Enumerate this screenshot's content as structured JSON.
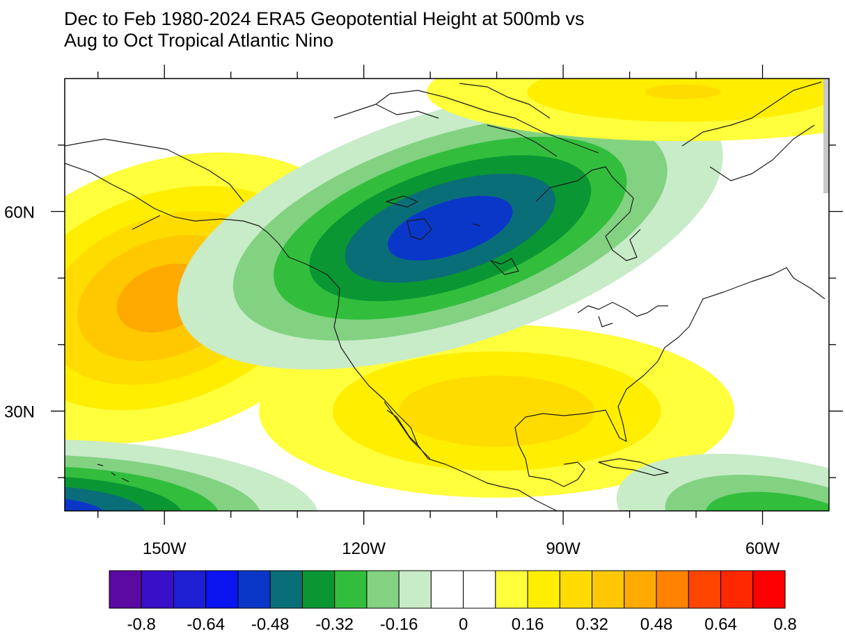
{
  "title": {
    "line1": "Dec to Feb 1980-2024 ERA5 Geopotential Height at 500mb vs",
    "line2": "Aug to Oct Tropical Atlantic Nino"
  },
  "map": {
    "lon_range": [
      -165,
      -50
    ],
    "lat_range": [
      15,
      80
    ],
    "lat_tick_labels": [
      {
        "lat": 60,
        "label": "60N"
      },
      {
        "lat": 30,
        "label": "30N"
      }
    ],
    "lon_tick_labels": [
      {
        "lon": -150,
        "label": "150W"
      },
      {
        "lon": -120,
        "label": "120W"
      },
      {
        "lon": -90,
        "label": "90W"
      },
      {
        "lon": -60,
        "label": "60W"
      }
    ],
    "minor_lon_ticks": [
      -160,
      -140,
      -130,
      -110,
      -100,
      -80,
      -70
    ],
    "minor_lat_ticks": [
      70,
      50,
      40,
      20
    ],
    "fields": [
      {
        "name": "north-pacific-ridge",
        "lon": -150,
        "lat": 47,
        "value": 0.44,
        "sx": 17,
        "sy": 11,
        "rot": -20
      },
      {
        "name": "gulf-ridge",
        "lon": -100,
        "lat": 30,
        "value": 0.3,
        "sx": 22,
        "sy": 8,
        "rot": 0
      },
      {
        "name": "canada-trough",
        "lon": -107,
        "lat": 57.5,
        "value": -0.53,
        "sx": 22,
        "sy": 9,
        "rot": -18
      },
      {
        "name": "hawaii-trough",
        "lon": -170,
        "lat": 14,
        "value": -0.55,
        "sx": 22,
        "sy": 6,
        "rot": 0
      },
      {
        "name": "arctic-ridge",
        "lon": -72,
        "lat": 78,
        "value": 0.24,
        "sx": 26,
        "sy": 5,
        "rot": 0
      },
      {
        "name": "caribbean-trough",
        "lon": -55,
        "lat": 12,
        "value": -0.35,
        "sx": 16,
        "sy": 6,
        "rot": 12
      }
    ]
  },
  "colorbar": {
    "colors": [
      "#5a0aa0",
      "#3a0fc8",
      "#1e1ed2",
      "#0a14f0",
      "#0a37c8",
      "#0a6e78",
      "#0a9632",
      "#32be3c",
      "#82d282",
      "#c8ebc8",
      "#ffffff",
      "#ffffff",
      "#ffff3c",
      "#ffee00",
      "#ffdc00",
      "#ffc800",
      "#ffaa00",
      "#ff8200",
      "#ff4600",
      "#ff2800",
      "#ff0000"
    ],
    "levels": [
      -0.88,
      -0.8,
      -0.72,
      -0.64,
      -0.56,
      -0.48,
      -0.4,
      -0.32,
      -0.24,
      -0.16,
      -0.08,
      0,
      0.08,
      0.16,
      0.24,
      0.32,
      0.4,
      0.48,
      0.56,
      0.64,
      0.72
    ],
    "labels": [
      "-0.8",
      "-0.64",
      "-0.48",
      "-0.32",
      "-0.16",
      "0",
      "0.16",
      "0.32",
      "0.48",
      "0.64",
      "0.8"
    ]
  }
}
